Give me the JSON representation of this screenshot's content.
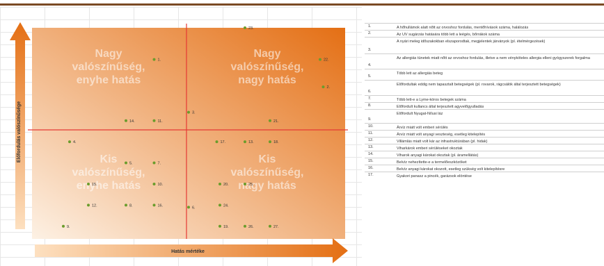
{
  "chart_data": {
    "type": "scatter",
    "title": "",
    "xlabel": "Hatás mértéke",
    "ylabel": "Előfordulás valószínűsége",
    "xlim": [
      0,
      10
    ],
    "ylim": [
      0,
      10
    ],
    "quadrants": [
      {
        "label_lines": [
          "Nagy",
          "valószínűség,",
          "enyhe hatás"
        ],
        "position": "top-left"
      },
      {
        "label_lines": [
          "Nagy",
          "valószínűség,",
          "nagy hatás"
        ],
        "position": "top-right"
      },
      {
        "label_lines": [
          "Kis",
          "valószínűség,",
          "enyhe hatás"
        ],
        "position": "bottom-left"
      },
      {
        "label_lines": [
          "Kis",
          "valószínűség,",
          "nagy hatás"
        ],
        "position": "bottom-right"
      }
    ],
    "points": [
      {
        "label": "1.",
        "x": 3.9,
        "y": 8.5
      },
      {
        "label": "2.",
        "x": 9.3,
        "y": 7.2
      },
      {
        "label": "3.",
        "x": 5.0,
        "y": 6.0
      },
      {
        "label": "4.",
        "x": 1.2,
        "y": 4.6
      },
      {
        "label": "5.",
        "x": 3.0,
        "y": 3.6
      },
      {
        "label": "6.",
        "x": 5.0,
        "y": 1.5
      },
      {
        "label": "7.",
        "x": 3.9,
        "y": 3.6
      },
      {
        "label": "8.",
        "x": 3.0,
        "y": 1.6
      },
      {
        "label": "9.",
        "x": 1.0,
        "y": 0.6
      },
      {
        "label": "10.",
        "x": 3.9,
        "y": 2.6
      },
      {
        "label": "11.",
        "x": 3.9,
        "y": 5.6
      },
      {
        "label": "12.",
        "x": 1.8,
        "y": 1.6
      },
      {
        "label": "13.",
        "x": 6.8,
        "y": 4.6
      },
      {
        "label": "14.",
        "x": 3.0,
        "y": 5.6
      },
      {
        "label": "15.",
        "x": 1.8,
        "y": 2.6
      },
      {
        "label": "16.",
        "x": 3.9,
        "y": 1.6
      },
      {
        "label": "17.",
        "x": 5.9,
        "y": 4.6
      },
      {
        "label": "18.",
        "x": 7.6,
        "y": 4.6
      },
      {
        "label": "19.",
        "x": 6.0,
        "y": 0.6
      },
      {
        "label": "20.",
        "x": 6.0,
        "y": 2.6
      },
      {
        "label": "21.",
        "x": 7.6,
        "y": 5.6
      },
      {
        "label": "22.",
        "x": 9.2,
        "y": 8.5
      },
      {
        "label": "23.",
        "x": 6.8,
        "y": 10.0
      },
      {
        "label": "24.",
        "x": 6.0,
        "y": 1.6
      },
      {
        "label": "25.",
        "x": 6.8,
        "y": 2.6
      },
      {
        "label": "26.",
        "x": 6.8,
        "y": 0.6
      },
      {
        "label": "27.",
        "x": 7.6,
        "y": 0.6
      }
    ],
    "colors": {
      "gradient_light": "#fdf1e4",
      "gradient_dark": "#e46f14",
      "crosshair": "#e53935",
      "point": "#6a9c2c",
      "text": "#333333",
      "quadrant_text": "#ffffff",
      "axis_arrow_light": "#fde0c0",
      "axis_arrow_dark": "#e46f14"
    }
  },
  "legend": [
    {
      "num": "1.",
      "text": "A hőhullámok alatt nőtt az orvoshoz fordulás, mentőhívások száma, halálozás"
    },
    {
      "num": "2.",
      "text": "Az UV sugárzás hatására több lett a leégés, bőrrákok száma"
    },
    {
      "num": "3.",
      "text": "A nyári meleg időszakokban elszaporodtak, megjelentek járványok (pl. ételmérgezések)"
    },
    {
      "num": "4.",
      "text": "Az allergiás tünetek miatt nőtt az orvoshoz fordulás, illetve a nem vényköteles allergia elleni gyógyszerek forgalma"
    },
    {
      "num": "5.",
      "text": "Több lett az allergiás beteg"
    },
    {
      "num": "6.",
      "text": "Előfordultak eddig nem tapasztalt betegségek (pl. rovarok, rágcsálók által terjesztett betegségek)"
    },
    {
      "num": "7.",
      "text": "Több lett-e a Lyme-kóros betegek száma"
    },
    {
      "num": "8.",
      "text": "Előfordult kullancs által terjesztett agyvelőgyulladás"
    },
    {
      "num": "9.",
      "text": "Előfordult Nyugat-Nílusi láz"
    },
    {
      "num": "10.",
      "text": "Árvíz miatt volt emberi sérülés"
    },
    {
      "num": "11.",
      "text": "Árvíz miatt volt anyagi veszteség, esetleg kitelepítés"
    },
    {
      "num": "12.",
      "text": "Villámlás miatt volt kár az infrastruktúrában (pl. hidak)"
    },
    {
      "num": "13.",
      "text": "Viharkárok emberi sérüléseket okoztak"
    },
    {
      "num": "14.",
      "text": "Viharok anyagi károkat okoztak (pl. áramellátás)"
    },
    {
      "num": "15.",
      "text": "Belvíz nehezítette-e a termelőeszközöket"
    },
    {
      "num": "16.",
      "text": "Belvíz anyagi károkat okozott, esetleg szükség volt kitelepítésre"
    },
    {
      "num": "17.",
      "text": "Gyakori panasz a pincék, garázsok elöntése"
    }
  ]
}
